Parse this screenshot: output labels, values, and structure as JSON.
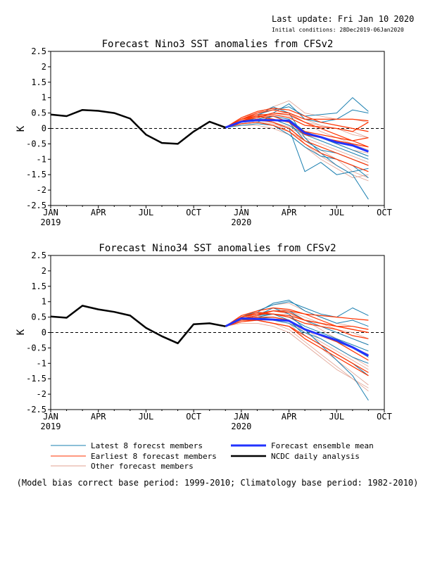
{
  "header": {
    "last_update": "Last update: Fri Jan 10 2020",
    "initial_conditions": "Initial conditions: 28Dec2019-06Jan2020"
  },
  "footnote": "(Model bias correct base period: 1999-2010; Climatology base period: 1982-2010)",
  "legend": {
    "latest": {
      "label": "Latest 8 forecst members",
      "color": "#1a7fb0"
    },
    "earliest": {
      "label": "Earliest 8 forecast members",
      "color": "#ff3300"
    },
    "other": {
      "label": "Other forecast members",
      "color": "#e0a090"
    },
    "mean": {
      "label": "Forecast ensemble mean",
      "color": "#2233ff"
    },
    "obs": {
      "label": "NCDC daily analysis",
      "color": "#000000"
    }
  },
  "chart_data": [
    {
      "type": "line",
      "title": "Forecast Nino3 SST anomalies from CFSv2",
      "ylabel": "K",
      "xlabel": "",
      "ylim": [
        -2.5,
        2.5
      ],
      "yticks": [
        "2.5",
        "2",
        "1.5",
        "1",
        "0.5",
        "0",
        "-0.5",
        "-1",
        "-1.5",
        "-2",
        "-2.5"
      ],
      "xlim": [
        "2019-01",
        "2020-10"
      ],
      "xticks": [
        "JAN",
        "APR",
        "JUL",
        "OCT",
        "JAN",
        "APR",
        "JUL",
        "OCT"
      ],
      "year_labels": [
        "2019",
        "2020"
      ],
      "zero_line": "dashed",
      "x_months": [
        0,
        1,
        2,
        3,
        4,
        5,
        6,
        7,
        8,
        9,
        10,
        11,
        12,
        13,
        14,
        15,
        16,
        17,
        18,
        19,
        20,
        21
      ],
      "observed": {
        "x": [
          "2019-01",
          "2019-02",
          "2019-03",
          "2019-04",
          "2019-05",
          "2019-06",
          "2019-07",
          "2019-08",
          "2019-09",
          "2019-10",
          "2019-11",
          "2019-12"
        ],
        "y": [
          0.45,
          0.4,
          0.6,
          0.57,
          0.5,
          0.32,
          -0.2,
          -0.47,
          -0.5,
          -0.1,
          0.22,
          0.03
        ]
      },
      "forecast_start": "2019-12",
      "forecast_end": "2020-09",
      "ensemble_mean": [
        0.03,
        0.22,
        0.27,
        0.27,
        0.25,
        -0.15,
        -0.28,
        -0.45,
        -0.55,
        -0.75
      ],
      "latest_members": [
        [
          0.03,
          0.3,
          0.45,
          0.6,
          0.7,
          0.4,
          0.45,
          0.5,
          1.0,
          0.55
        ],
        [
          0.03,
          0.25,
          0.4,
          0.7,
          0.5,
          -0.3,
          -0.8,
          -1.2,
          -1.5,
          -2.3
        ],
        [
          0.03,
          0.2,
          0.3,
          0.2,
          0.0,
          -1.4,
          -1.1,
          -1.5,
          -1.4,
          -1.3
        ],
        [
          0.03,
          0.15,
          0.2,
          0.4,
          0.2,
          -0.4,
          -0.7,
          -0.8,
          -1.0,
          -1.2
        ],
        [
          0.03,
          0.2,
          0.35,
          0.5,
          0.8,
          0.3,
          0.2,
          0.3,
          0.6,
          0.5
        ],
        [
          0.03,
          0.1,
          0.15,
          0.1,
          -0.2,
          -0.6,
          -0.9,
          -1.0,
          -1.2,
          -1.6
        ],
        [
          0.03,
          0.25,
          0.3,
          0.4,
          0.3,
          -0.1,
          -0.3,
          -0.5,
          -0.7,
          -0.9
        ],
        [
          0.03,
          0.2,
          0.25,
          0.3,
          0.1,
          -0.2,
          -0.4,
          -0.6,
          -0.8,
          -1.0
        ]
      ],
      "earliest_members": [
        [
          0.03,
          0.3,
          0.5,
          0.6,
          0.5,
          0.3,
          0.3,
          0.3,
          0.3,
          0.25
        ],
        [
          0.03,
          0.25,
          0.4,
          0.3,
          0.2,
          -0.2,
          -0.3,
          -0.4,
          -0.5,
          -0.6
        ],
        [
          0.03,
          0.35,
          0.55,
          0.65,
          0.6,
          0.4,
          0.2,
          0.1,
          0.0,
          -0.1
        ],
        [
          0.03,
          0.2,
          0.3,
          0.2,
          0.0,
          -0.4,
          -0.6,
          -0.8,
          -1.0,
          -1.2
        ],
        [
          0.03,
          0.3,
          0.4,
          0.4,
          0.2,
          -0.1,
          -0.2,
          -0.3,
          -0.4,
          -0.3
        ],
        [
          0.03,
          0.25,
          0.35,
          0.5,
          0.45,
          0.2,
          0.0,
          -0.2,
          -0.4,
          -0.6
        ],
        [
          0.03,
          0.15,
          0.2,
          0.1,
          -0.1,
          -0.5,
          -0.8,
          -1.0,
          -1.2,
          -1.4
        ],
        [
          0.03,
          0.3,
          0.45,
          0.45,
          0.35,
          0.1,
          0.05,
          0.0,
          -0.1,
          0.2
        ]
      ],
      "other_members": [
        [
          0.03,
          0.3,
          0.5,
          0.7,
          0.9,
          0.5,
          0.4,
          0.3,
          0.3,
          0.2
        ],
        [
          0.03,
          0.2,
          0.3,
          0.2,
          -0.1,
          -0.4,
          -0.7,
          -1.0,
          -1.4,
          -1.6
        ],
        [
          0.03,
          0.25,
          0.35,
          0.3,
          0.1,
          -0.3,
          -0.5,
          -0.7,
          -0.9,
          -1.1
        ],
        [
          0.03,
          0.15,
          0.2,
          0.15,
          0.0,
          -0.2,
          -0.3,
          -0.5,
          -0.7,
          -0.8
        ],
        [
          0.03,
          0.3,
          0.4,
          0.5,
          0.4,
          0.2,
          0.1,
          0.0,
          -0.2,
          -0.3
        ],
        [
          0.03,
          0.2,
          0.25,
          0.2,
          0.05,
          -0.5,
          -0.9,
          -1.2,
          -1.5,
          -1.7
        ],
        [
          0.03,
          0.1,
          0.1,
          0.0,
          -0.2,
          -0.6,
          -1.0,
          -1.3,
          -1.6,
          -1.5
        ],
        [
          0.03,
          0.25,
          0.4,
          0.5,
          0.5,
          0.3,
          0.1,
          0.0,
          -0.1,
          -0.3
        ],
        [
          0.03,
          0.35,
          0.5,
          0.6,
          0.5,
          0.2,
          -0.1,
          -0.3,
          -0.5,
          -0.7
        ],
        [
          0.03,
          0.2,
          0.3,
          0.3,
          0.2,
          -0.1,
          -0.3,
          -0.5,
          -0.7,
          -0.9
        ]
      ]
    },
    {
      "type": "line",
      "title": "Forecast Nino34 SST anomalies from CFSv2",
      "ylabel": "K",
      "xlabel": "",
      "ylim": [
        -2.5,
        2.5
      ],
      "yticks": [
        "2.5",
        "2",
        "1.5",
        "1",
        "0.5",
        "0",
        "-0.5",
        "-1",
        "-1.5",
        "-2",
        "-2.5"
      ],
      "xlim": [
        "2019-01",
        "2020-10"
      ],
      "xticks": [
        "JAN",
        "APR",
        "JUL",
        "OCT",
        "JAN",
        "APR",
        "JUL",
        "OCT"
      ],
      "year_labels": [
        "2019",
        "2020"
      ],
      "zero_line": "dashed",
      "observed": {
        "x": [
          "2019-01",
          "2019-02",
          "2019-03",
          "2019-04",
          "2019-05",
          "2019-06",
          "2019-07",
          "2019-08",
          "2019-09",
          "2019-10",
          "2019-11",
          "2019-12"
        ],
        "y": [
          0.52,
          0.48,
          0.87,
          0.75,
          0.67,
          0.55,
          0.15,
          -0.12,
          -0.35,
          0.27,
          0.3,
          0.2
        ]
      },
      "forecast_start": "2019-12",
      "forecast_end": "2020-09",
      "ensemble_mean": [
        0.2,
        0.46,
        0.44,
        0.42,
        0.38,
        0.1,
        -0.08,
        -0.25,
        -0.48,
        -0.75
      ],
      "latest_members": [
        [
          0.2,
          0.5,
          0.7,
          0.9,
          1.0,
          0.8,
          0.6,
          0.5,
          0.8,
          0.55
        ],
        [
          0.2,
          0.45,
          0.55,
          0.8,
          0.6,
          0.1,
          -0.4,
          -0.9,
          -1.4,
          -2.2
        ],
        [
          0.2,
          0.4,
          0.5,
          0.6,
          0.4,
          -0.1,
          -0.4,
          -0.7,
          -1.0,
          -1.4
        ],
        [
          0.2,
          0.5,
          0.6,
          0.7,
          0.7,
          0.4,
          0.2,
          0.0,
          -0.2,
          -0.4
        ],
        [
          0.2,
          0.45,
          0.5,
          0.4,
          0.3,
          0.0,
          -0.2,
          -0.5,
          -0.8,
          -1.0
        ],
        [
          0.2,
          0.5,
          0.65,
          0.95,
          1.05,
          0.7,
          0.5,
          0.3,
          0.4,
          0.2
        ],
        [
          0.2,
          0.4,
          0.45,
          0.5,
          0.4,
          0.1,
          -0.1,
          -0.3,
          -0.5,
          -0.8
        ],
        [
          0.2,
          0.45,
          0.55,
          0.6,
          0.5,
          0.2,
          0.0,
          -0.2,
          -0.4,
          -0.6
        ]
      ],
      "earliest_members": [
        [
          0.2,
          0.5,
          0.6,
          0.7,
          0.7,
          0.6,
          0.55,
          0.5,
          0.45,
          0.4
        ],
        [
          0.2,
          0.45,
          0.5,
          0.5,
          0.4,
          0.1,
          -0.1,
          -0.3,
          -0.6,
          -0.9
        ],
        [
          0.2,
          0.55,
          0.7,
          0.8,
          0.75,
          0.6,
          0.4,
          0.2,
          0.1,
          0.0
        ],
        [
          0.2,
          0.4,
          0.4,
          0.3,
          0.2,
          -0.2,
          -0.5,
          -0.8,
          -1.1,
          -1.4
        ],
        [
          0.2,
          0.5,
          0.6,
          0.6,
          0.5,
          0.3,
          0.2,
          0.1,
          -0.1,
          -0.2
        ],
        [
          0.2,
          0.45,
          0.55,
          0.7,
          0.65,
          0.4,
          0.3,
          0.2,
          0.1,
          0.0
        ],
        [
          0.2,
          0.35,
          0.4,
          0.3,
          0.2,
          -0.1,
          -0.4,
          -0.7,
          -1.0,
          -1.3
        ],
        [
          0.2,
          0.5,
          0.65,
          0.6,
          0.55,
          0.4,
          0.3,
          0.2,
          0.2,
          0.1
        ]
      ],
      "other_members": [
        [
          0.2,
          0.5,
          0.7,
          0.9,
          0.95,
          0.7,
          0.5,
          0.3,
          0.2,
          0.1
        ],
        [
          0.2,
          0.4,
          0.45,
          0.4,
          0.3,
          -0.2,
          -0.5,
          -0.9,
          -1.3,
          -1.7
        ],
        [
          0.2,
          0.45,
          0.5,
          0.5,
          0.4,
          0.0,
          -0.3,
          -0.6,
          -0.9,
          -1.2
        ],
        [
          0.2,
          0.35,
          0.4,
          0.4,
          0.3,
          0.1,
          -0.1,
          -0.3,
          -0.5,
          -0.7
        ],
        [
          0.2,
          0.55,
          0.65,
          0.7,
          0.6,
          0.4,
          0.2,
          0.0,
          -0.2,
          -0.4
        ],
        [
          0.2,
          0.4,
          0.4,
          0.3,
          0.1,
          -0.3,
          -0.7,
          -1.1,
          -1.5,
          -1.9
        ],
        [
          0.2,
          0.3,
          0.3,
          0.2,
          0.0,
          -0.4,
          -0.8,
          -1.2,
          -1.5,
          -1.8
        ],
        [
          0.2,
          0.45,
          0.6,
          0.7,
          0.7,
          0.5,
          0.3,
          0.1,
          0.0,
          -0.2
        ],
        [
          0.2,
          0.55,
          0.7,
          0.8,
          0.7,
          0.4,
          0.1,
          -0.2,
          -0.5,
          -0.8
        ],
        [
          0.2,
          0.4,
          0.5,
          0.5,
          0.4,
          0.1,
          -0.2,
          -0.5,
          -0.8,
          -1.1
        ]
      ]
    }
  ]
}
